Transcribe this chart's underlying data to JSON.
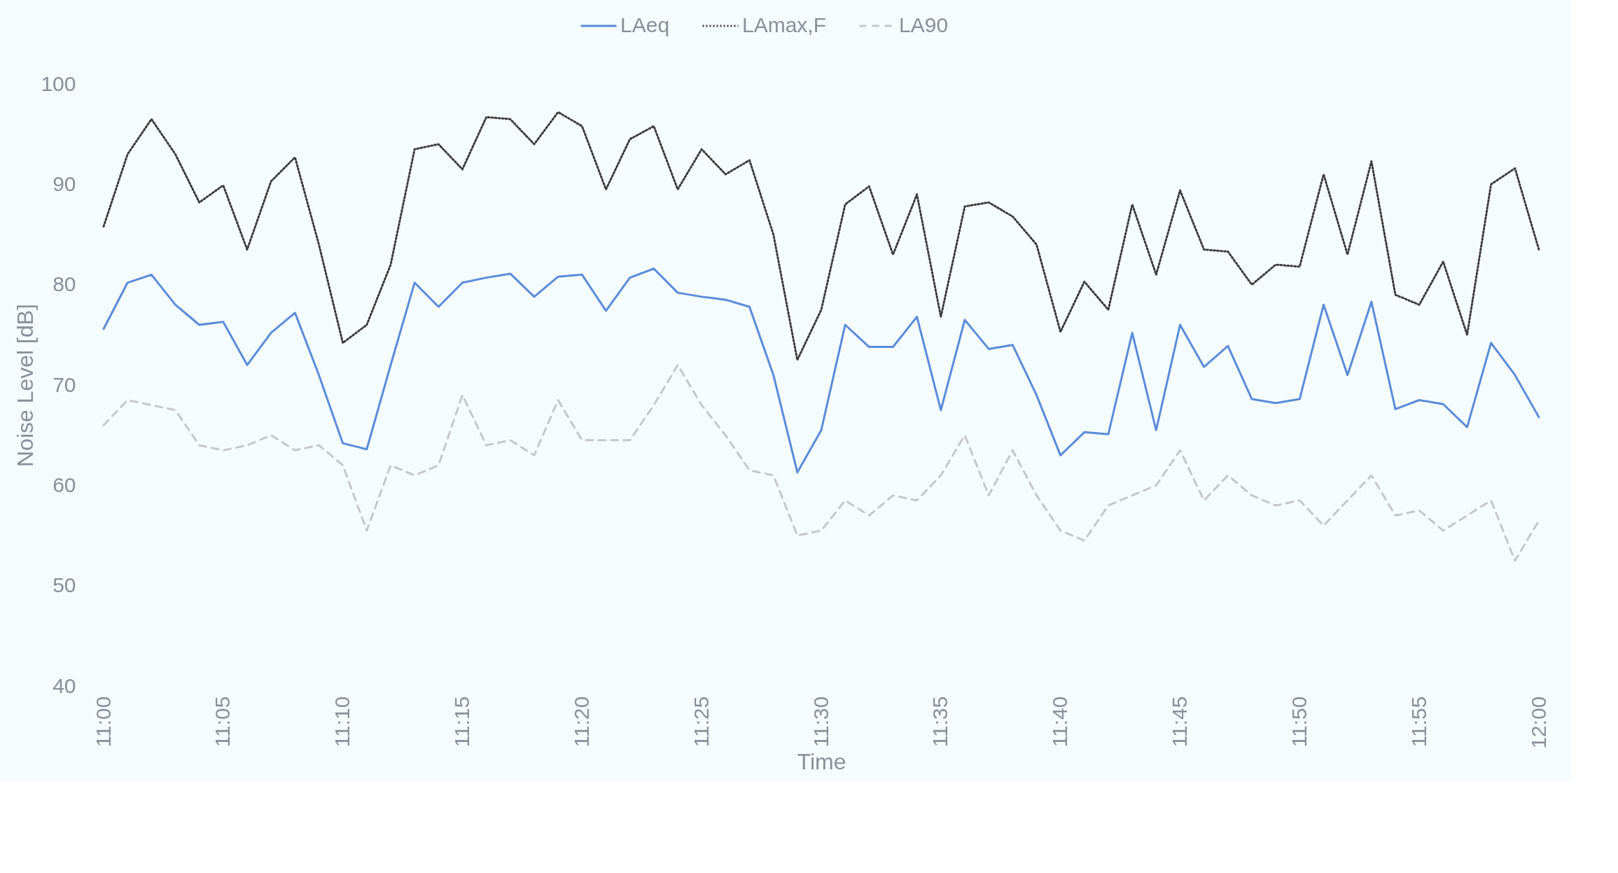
{
  "chart_data": {
    "type": "line",
    "xlabel": "Time",
    "ylabel": "Noise Level [dB]",
    "categories": [
      "11:00",
      null,
      null,
      null,
      null,
      "11:05",
      null,
      null,
      null,
      null,
      "11:10",
      null,
      null,
      null,
      null,
      "11:15",
      null,
      null,
      null,
      null,
      "11:20",
      null,
      null,
      null,
      null,
      "11:25",
      null,
      null,
      null,
      null,
      "11:30",
      null,
      null,
      null,
      null,
      "11:35",
      null,
      null,
      null,
      null,
      "11:40",
      null,
      null,
      null,
      null,
      "11:45",
      null,
      null,
      null,
      null,
      "11:50",
      null,
      null,
      null,
      null,
      "11:55",
      null,
      null,
      null,
      null,
      "12:00"
    ],
    "series": [
      {
        "name": "LAeq",
        "color": "#5b8bd9",
        "line_style": "solid",
        "values": [
          75.6,
          80.2,
          81,
          78,
          76,
          76.3,
          72,
          75.2,
          77.2,
          71,
          64.2,
          63.6,
          72,
          80.2,
          77.8,
          80.2,
          80.7,
          81.1,
          78.8,
          80.8,
          81,
          77.4,
          80.7,
          81.6,
          79.2,
          78.8,
          78.5,
          77.8,
          71,
          61.3,
          65.5,
          76,
          73.8,
          73.8,
          76.8,
          67.5,
          76.5,
          73.6,
          74,
          69,
          63,
          65.3,
          65.1,
          75.2,
          65.5,
          76,
          71.8,
          73.9,
          68.6,
          68.2,
          68.6,
          78,
          71,
          78.3,
          67.6,
          68.5,
          68.1,
          65.8,
          74.2,
          71,
          66.8
        ]
      },
      {
        "name": "LAmax,F",
        "color": "#3c3c3c",
        "line_style": "dotted",
        "values": [
          85.8,
          93,
          96.5,
          93,
          88.2,
          89.9,
          83.5,
          90.3,
          92.7,
          84,
          74.2,
          76,
          82,
          93.5,
          94,
          91.5,
          96.7,
          96.5,
          94,
          97.2,
          95.8,
          89.5,
          94.5,
          95.8,
          89.5,
          93.5,
          91,
          92.4,
          85,
          72.5,
          77.5,
          88,
          89.8,
          83,
          89,
          76.8,
          87.8,
          88.2,
          86.8,
          84,
          75.3,
          80.3,
          77.5,
          88,
          81,
          89.4,
          83.5,
          83.3,
          80,
          82,
          81.8,
          91,
          83,
          92.3,
          79,
          78,
          82.3,
          75,
          90,
          91.6,
          83.5
        ]
      },
      {
        "name": "LA90",
        "color": "#c4c8cc",
        "line_style": "dashed",
        "values": [
          66,
          68.5,
          68,
          67.5,
          64,
          63.5,
          64,
          65,
          63.5,
          64,
          62,
          55.5,
          62,
          61,
          62,
          69,
          64,
          64.5,
          63,
          68.5,
          64.5,
          64.5,
          64.5,
          68,
          72,
          68,
          65,
          61.5,
          61,
          55,
          55.5,
          58.5,
          57,
          59,
          58.5,
          61,
          65,
          59,
          63.5,
          59,
          55.5,
          54.5,
          58,
          59,
          60,
          63.5,
          58.5,
          61,
          59,
          58,
          58.5,
          56,
          58.5,
          61,
          57,
          57.5,
          55.5,
          57,
          58.5,
          52.5,
          56.5
        ]
      }
    ],
    "ylim": [
      40,
      100
    ],
    "yticks": [
      40,
      50,
      60,
      70,
      80,
      90,
      100
    ],
    "grid": false,
    "legend": "top"
  }
}
